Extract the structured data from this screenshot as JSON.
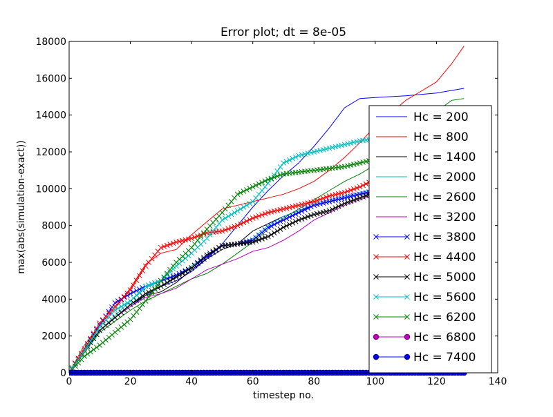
{
  "chart_data": {
    "type": "line",
    "title": "Error plot; dt = 8e-05",
    "xlabel": "timestep no.",
    "ylabel": "max(abs(simulation-exact))",
    "xlim": [
      0,
      140
    ],
    "ylim": [
      0,
      18000
    ],
    "xticks": [
      0,
      20,
      40,
      60,
      80,
      100,
      120,
      140
    ],
    "yticks": [
      0,
      2000,
      4000,
      6000,
      8000,
      10000,
      12000,
      14000,
      16000,
      18000
    ],
    "grid": false,
    "legend_position": "right",
    "series": [
      {
        "name": "Hc = 200",
        "color": "#0000ff",
        "marker": "none",
        "points": [
          [
            0,
            0
          ],
          [
            5,
            1200
          ],
          [
            10,
            2300
          ],
          [
            15,
            3000
          ],
          [
            20,
            3600
          ],
          [
            25,
            4200
          ],
          [
            30,
            4700
          ],
          [
            35,
            5000
          ],
          [
            40,
            5500
          ],
          [
            45,
            6200
          ],
          [
            50,
            7000
          ],
          [
            55,
            8000
          ],
          [
            60,
            9000
          ],
          [
            65,
            9900
          ],
          [
            70,
            10700
          ],
          [
            75,
            11400
          ],
          [
            80,
            12300
          ],
          [
            85,
            13300
          ],
          [
            90,
            14400
          ],
          [
            95,
            14900
          ],
          [
            100,
            14950
          ],
          [
            110,
            15050
          ],
          [
            120,
            15200
          ],
          [
            129,
            15450
          ]
        ]
      },
      {
        "name": "Hc = 800",
        "color": "#ff0000",
        "marker": "none",
        "points": [
          [
            0,
            0
          ],
          [
            5,
            1500
          ],
          [
            10,
            2600
          ],
          [
            15,
            3500
          ],
          [
            20,
            4600
          ],
          [
            25,
            5900
          ],
          [
            30,
            6500
          ],
          [
            35,
            6700
          ],
          [
            40,
            7500
          ],
          [
            45,
            8200
          ],
          [
            50,
            8900
          ],
          [
            55,
            9100
          ],
          [
            60,
            9300
          ],
          [
            65,
            9500
          ],
          [
            70,
            9700
          ],
          [
            75,
            10000
          ],
          [
            80,
            10400
          ],
          [
            85,
            11000
          ],
          [
            90,
            11700
          ],
          [
            95,
            12500
          ],
          [
            100,
            13400
          ],
          [
            105,
            14100
          ],
          [
            110,
            14800
          ],
          [
            115,
            15300
          ],
          [
            120,
            15800
          ],
          [
            125,
            16800
          ],
          [
            129,
            17750
          ]
        ]
      },
      {
        "name": "Hc = 1400",
        "color": "#000000",
        "marker": "none",
        "points": [
          [
            0,
            0
          ],
          [
            5,
            1200
          ],
          [
            10,
            2300
          ],
          [
            15,
            3000
          ],
          [
            20,
            3700
          ],
          [
            25,
            4200
          ],
          [
            30,
            4400
          ],
          [
            35,
            4900
          ],
          [
            40,
            5600
          ],
          [
            45,
            6200
          ],
          [
            50,
            6700
          ],
          [
            55,
            7000
          ],
          [
            60,
            7700
          ],
          [
            65,
            8100
          ],
          [
            70,
            8500
          ],
          [
            75,
            8800
          ],
          [
            80,
            9100
          ],
          [
            85,
            9300
          ],
          [
            90,
            9500
          ],
          [
            95,
            9700
          ],
          [
            100,
            9850
          ]
        ]
      },
      {
        "name": "Hc = 2000",
        "color": "#00bfbf",
        "marker": "none",
        "points": [
          [
            0,
            0
          ],
          [
            5,
            1300
          ],
          [
            10,
            2300
          ],
          [
            15,
            3100
          ],
          [
            20,
            3900
          ],
          [
            25,
            4600
          ],
          [
            30,
            5000
          ],
          [
            35,
            5300
          ],
          [
            40,
            5800
          ],
          [
            45,
            6400
          ],
          [
            50,
            6900
          ],
          [
            55,
            7000
          ],
          [
            60,
            7300
          ],
          [
            65,
            8000
          ],
          [
            70,
            8500
          ],
          [
            75,
            8800
          ],
          [
            80,
            9200
          ],
          [
            85,
            9400
          ],
          [
            90,
            9600
          ],
          [
            95,
            9800
          ],
          [
            100,
            10000
          ]
        ]
      },
      {
        "name": "Hc = 2600",
        "color": "#008000",
        "marker": "none",
        "points": [
          [
            0,
            0
          ],
          [
            5,
            1100
          ],
          [
            10,
            2200
          ],
          [
            15,
            2800
          ],
          [
            20,
            3400
          ],
          [
            25,
            3900
          ],
          [
            30,
            4300
          ],
          [
            35,
            4700
          ],
          [
            40,
            5100
          ],
          [
            45,
            5400
          ],
          [
            50,
            5900
          ],
          [
            55,
            6500
          ],
          [
            60,
            7100
          ],
          [
            65,
            7800
          ],
          [
            70,
            8400
          ],
          [
            75,
            8900
          ],
          [
            80,
            9400
          ],
          [
            85,
            9900
          ],
          [
            90,
            10400
          ],
          [
            95,
            10800
          ],
          [
            100,
            11300
          ],
          [
            105,
            11800
          ],
          [
            110,
            12600
          ],
          [
            115,
            13400
          ],
          [
            120,
            14200
          ],
          [
            125,
            14800
          ],
          [
            129,
            14900
          ]
        ]
      },
      {
        "name": "Hc = 3200",
        "color": "#bf00bf",
        "marker": "none",
        "points": [
          [
            0,
            0
          ],
          [
            5,
            1200
          ],
          [
            10,
            2300
          ],
          [
            15,
            3000
          ],
          [
            20,
            3600
          ],
          [
            25,
            4100
          ],
          [
            30,
            4300
          ],
          [
            35,
            4600
          ],
          [
            40,
            5100
          ],
          [
            45,
            5600
          ],
          [
            50,
            5900
          ],
          [
            55,
            6200
          ],
          [
            60,
            6600
          ],
          [
            65,
            6800
          ],
          [
            70,
            7200
          ],
          [
            75,
            7700
          ],
          [
            80,
            8300
          ],
          [
            85,
            8700
          ],
          [
            90,
            9100
          ],
          [
            95,
            9400
          ],
          [
            100,
            9700
          ]
        ]
      },
      {
        "name": "Hc = 3800",
        "color": "#0000ff",
        "marker": "x",
        "points": [
          [
            0,
            0
          ],
          [
            5,
            1300
          ],
          [
            10,
            2600
          ],
          [
            15,
            3800
          ],
          [
            20,
            4300
          ],
          [
            25,
            4700
          ],
          [
            30,
            5000
          ],
          [
            35,
            5300
          ],
          [
            40,
            5700
          ],
          [
            45,
            6300
          ],
          [
            50,
            6900
          ],
          [
            55,
            7000
          ],
          [
            60,
            7200
          ],
          [
            65,
            7900
          ],
          [
            70,
            8300
          ],
          [
            75,
            8700
          ],
          [
            80,
            9100
          ],
          [
            85,
            9300
          ],
          [
            90,
            9500
          ],
          [
            95,
            9700
          ],
          [
            100,
            9900
          ]
        ]
      },
      {
        "name": "Hc = 4400",
        "color": "#ff0000",
        "marker": "x",
        "points": [
          [
            0,
            0
          ],
          [
            5,
            1300
          ],
          [
            10,
            2700
          ],
          [
            15,
            3600
          ],
          [
            20,
            4500
          ],
          [
            25,
            5800
          ],
          [
            30,
            6800
          ],
          [
            35,
            7100
          ],
          [
            40,
            7300
          ],
          [
            45,
            7600
          ],
          [
            50,
            7700
          ],
          [
            55,
            8000
          ],
          [
            60,
            8400
          ],
          [
            65,
            8700
          ],
          [
            70,
            8900
          ],
          [
            75,
            9100
          ],
          [
            80,
            9300
          ],
          [
            85,
            9600
          ],
          [
            90,
            9800
          ],
          [
            95,
            10100
          ],
          [
            100,
            10500
          ]
        ]
      },
      {
        "name": "Hc = 5000",
        "color": "#000000",
        "marker": "x",
        "points": [
          [
            0,
            0
          ],
          [
            5,
            1200
          ],
          [
            10,
            2300
          ],
          [
            15,
            3000
          ],
          [
            20,
            3700
          ],
          [
            25,
            4300
          ],
          [
            30,
            4700
          ],
          [
            35,
            5200
          ],
          [
            40,
            5700
          ],
          [
            45,
            6400
          ],
          [
            50,
            6900
          ],
          [
            55,
            7000
          ],
          [
            60,
            7100
          ],
          [
            65,
            7400
          ],
          [
            70,
            7900
          ],
          [
            75,
            8300
          ],
          [
            80,
            8600
          ],
          [
            85,
            8800
          ],
          [
            90,
            9200
          ],
          [
            95,
            9500
          ],
          [
            100,
            9800
          ]
        ]
      },
      {
        "name": "Hc = 5600",
        "color": "#00bfbf",
        "marker": "x",
        "points": [
          [
            0,
            0
          ],
          [
            5,
            1200
          ],
          [
            10,
            2500
          ],
          [
            15,
            3400
          ],
          [
            20,
            3900
          ],
          [
            25,
            4700
          ],
          [
            30,
            5000
          ],
          [
            35,
            5800
          ],
          [
            40,
            6500
          ],
          [
            45,
            7300
          ],
          [
            50,
            8300
          ],
          [
            55,
            8800
          ],
          [
            60,
            9300
          ],
          [
            65,
            10300
          ],
          [
            70,
            11400
          ],
          [
            75,
            11800
          ],
          [
            80,
            12000
          ],
          [
            85,
            12200
          ],
          [
            90,
            12400
          ],
          [
            95,
            12600
          ],
          [
            100,
            12700
          ]
        ]
      },
      {
        "name": "Hc = 6200",
        "color": "#008000",
        "marker": "x",
        "points": [
          [
            0,
            0
          ],
          [
            5,
            900
          ],
          [
            10,
            1500
          ],
          [
            15,
            2200
          ],
          [
            20,
            2900
          ],
          [
            25,
            3900
          ],
          [
            30,
            5000
          ],
          [
            35,
            6000
          ],
          [
            40,
            6800
          ],
          [
            45,
            7800
          ],
          [
            50,
            8700
          ],
          [
            55,
            9700
          ],
          [
            60,
            10100
          ],
          [
            65,
            10500
          ],
          [
            70,
            10800
          ],
          [
            75,
            10900
          ],
          [
            80,
            11000
          ],
          [
            85,
            11100
          ],
          [
            90,
            11200
          ],
          [
            95,
            11400
          ],
          [
            100,
            11600
          ]
        ]
      },
      {
        "name": "Hc = 6800",
        "color": "#bf00bf",
        "marker": "o",
        "points": [
          [
            0,
            0
          ],
          [
            129,
            0
          ]
        ]
      },
      {
        "name": "Hc = 7400",
        "color": "#0000ff",
        "marker": "o",
        "points": [
          [
            0,
            0
          ],
          [
            129,
            0
          ]
        ]
      }
    ]
  }
}
